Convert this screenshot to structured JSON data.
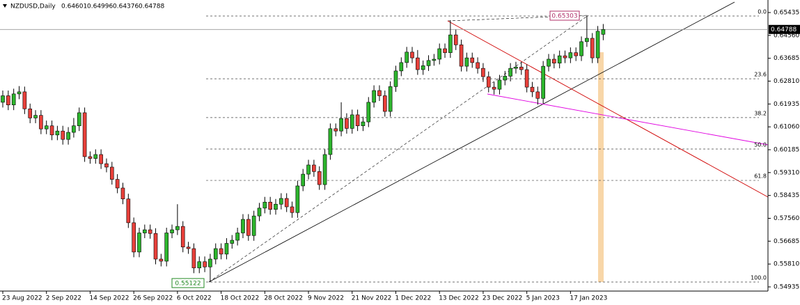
{
  "chart_data": {
    "type": "candlestick",
    "symbol": "NZDUSD,Daily",
    "quote": [
      "0.64601",
      "0.64996",
      "0.64376",
      "0.64788"
    ],
    "categories": [
      "23 Aug 2022",
      null,
      null,
      null,
      null,
      null,
      null,
      null,
      "2 Sep 2022",
      null,
      null,
      null,
      null,
      null,
      null,
      null,
      "14 Sep 2022",
      null,
      null,
      null,
      null,
      null,
      null,
      null,
      "26 Sep 2022",
      null,
      null,
      null,
      null,
      null,
      null,
      null,
      "6 Oct 2022",
      null,
      null,
      null,
      null,
      null,
      null,
      null,
      "18 Oct 2022",
      null,
      null,
      null,
      null,
      null,
      null,
      null,
      "28 Oct 2022",
      null,
      null,
      null,
      null,
      null,
      null,
      null,
      "9 Nov 2022",
      null,
      null,
      null,
      null,
      null,
      null,
      null,
      "21 Nov 2022",
      null,
      null,
      null,
      null,
      null,
      null,
      null,
      "1 Dec 2022",
      null,
      null,
      null,
      null,
      null,
      null,
      null,
      "13 Dec 2022",
      null,
      null,
      null,
      null,
      null,
      null,
      null,
      "23 Dec 2022",
      null,
      null,
      null,
      null,
      null,
      null,
      null,
      "5 Jan 2023",
      null,
      null,
      null,
      null,
      null,
      null,
      null,
      "17 Jan 2023",
      null,
      null,
      null,
      null,
      null,
      null
    ],
    "open": [
      0.62,
      0.6225,
      0.619,
      0.6232,
      0.624,
      0.6175,
      0.614,
      0.615,
      0.6098,
      0.611,
      0.6075,
      0.609,
      0.6058,
      0.6085,
      0.611,
      0.616,
      0.5992,
      0.5985,
      0.6,
      0.5965,
      0.5952,
      0.5905,
      0.5872,
      0.583,
      0.5739,
      0.5627,
      0.57,
      0.5712,
      0.5698,
      0.56,
      0.5592,
      0.57,
      0.5712,
      0.5725,
      0.5646,
      0.564,
      0.5566,
      0.559,
      0.557,
      0.56,
      0.564,
      0.5619,
      0.566,
      0.5672,
      0.57,
      0.5752,
      0.569,
      0.5765,
      0.5795,
      0.5818,
      0.579,
      0.581,
      0.5832,
      0.58,
      0.5778,
      0.588,
      0.5925,
      0.596,
      0.5935,
      0.5885,
      0.6,
      0.6099,
      0.609,
      0.6138,
      0.61,
      0.6152,
      0.611,
      0.6125,
      0.62,
      0.6245,
      0.6225,
      0.6165,
      0.626,
      0.632,
      0.6352,
      0.6392,
      0.637,
      0.6325,
      0.634,
      0.636,
      0.6365,
      0.6405,
      0.639,
      0.6458,
      0.642,
      0.6338,
      0.637,
      0.6352,
      0.633,
      0.6298,
      0.6258,
      0.625,
      0.6285,
      0.63,
      0.633,
      0.6335,
      0.6325,
      0.6258,
      0.624,
      0.6215,
      0.6338,
      0.6365,
      0.635,
      0.6378,
      0.637,
      0.639,
      0.6378,
      0.6432,
      0.6445,
      0.637,
      0.64601
    ],
    "high": [
      0.6245,
      0.6245,
      0.6252,
      0.6262,
      0.626,
      0.6195,
      0.617,
      0.617,
      0.613,
      0.613,
      0.611,
      0.611,
      0.6105,
      0.614,
      0.618,
      0.618,
      0.6012,
      0.602,
      0.602,
      0.5985,
      0.5972,
      0.5925,
      0.5892,
      0.585,
      0.5759,
      0.572,
      0.5732,
      0.5732,
      0.5718,
      0.562,
      0.572,
      0.5732,
      0.581,
      0.5745,
      0.5666,
      0.566,
      0.561,
      0.561,
      0.562,
      0.566,
      0.566,
      0.568,
      0.5692,
      0.572,
      0.5772,
      0.5772,
      0.5785,
      0.5815,
      0.5838,
      0.5838,
      0.583,
      0.5852,
      0.5852,
      0.582,
      0.59,
      0.5945,
      0.598,
      0.598,
      0.5955,
      0.602,
      0.6119,
      0.6119,
      0.62,
      0.6158,
      0.6172,
      0.6172,
      0.6145,
      0.622,
      0.6265,
      0.6265,
      0.6245,
      0.628,
      0.634,
      0.6372,
      0.6412,
      0.6412,
      0.64,
      0.636,
      0.638,
      0.6385,
      0.6425,
      0.6425,
      0.6514,
      0.6478,
      0.644,
      0.639,
      0.639,
      0.6372,
      0.635,
      0.6318,
      0.6278,
      0.6305,
      0.632,
      0.635,
      0.6355,
      0.6355,
      0.6345,
      0.6278,
      0.626,
      0.6358,
      0.6385,
      0.6385,
      0.6398,
      0.6398,
      0.641,
      0.641,
      0.6452,
      0.65303,
      0.6465,
      0.6492,
      0.64996
    ],
    "low": [
      0.618,
      0.617,
      0.617,
      0.6212,
      0.6155,
      0.612,
      0.612,
      0.6078,
      0.6078,
      0.6055,
      0.6055,
      0.6038,
      0.6038,
      0.6065,
      0.609,
      0.5972,
      0.5965,
      0.5965,
      0.5945,
      0.5932,
      0.5885,
      0.5852,
      0.581,
      0.5719,
      0.5607,
      0.5607,
      0.568,
      0.5678,
      0.558,
      0.5572,
      0.5572,
      0.568,
      0.5692,
      0.5626,
      0.562,
      0.5546,
      0.5546,
      0.555,
      0.55122,
      0.558,
      0.5599,
      0.5599,
      0.564,
      0.5652,
      0.568,
      0.567,
      0.567,
      0.5745,
      0.5775,
      0.577,
      0.577,
      0.579,
      0.578,
      0.5758,
      0.5758,
      0.586,
      0.5905,
      0.5915,
      0.5865,
      0.5865,
      0.598,
      0.607,
      0.607,
      0.608,
      0.608,
      0.609,
      0.609,
      0.6105,
      0.618,
      0.6205,
      0.6145,
      0.6145,
      0.624,
      0.63,
      0.6332,
      0.635,
      0.6305,
      0.6305,
      0.632,
      0.634,
      0.6345,
      0.637,
      0.637,
      0.64,
      0.6318,
      0.6318,
      0.6332,
      0.631,
      0.6278,
      0.6238,
      0.623,
      0.623,
      0.6265,
      0.628,
      0.631,
      0.6305,
      0.6238,
      0.622,
      0.6191,
      0.6195,
      0.6318,
      0.633,
      0.633,
      0.635,
      0.635,
      0.6358,
      0.6358,
      0.6412,
      0.635,
      0.635,
      0.64376
    ],
    "close": [
      0.6225,
      0.619,
      0.6232,
      0.624,
      0.6175,
      0.614,
      0.615,
      0.6098,
      0.611,
      0.6075,
      0.609,
      0.6058,
      0.6085,
      0.611,
      0.616,
      0.5992,
      0.5985,
      0.6,
      0.5965,
      0.5952,
      0.5905,
      0.5872,
      0.583,
      0.5739,
      0.5627,
      0.57,
      0.5712,
      0.5698,
      0.56,
      0.5592,
      0.57,
      0.5712,
      0.5725,
      0.5646,
      0.564,
      0.5566,
      0.559,
      0.557,
      0.56,
      0.564,
      0.5619,
      0.566,
      0.5672,
      0.57,
      0.5752,
      0.569,
      0.5765,
      0.5795,
      0.5818,
      0.579,
      0.581,
      0.5832,
      0.58,
      0.5778,
      0.588,
      0.5925,
      0.596,
      0.5935,
      0.5885,
      0.6,
      0.6099,
      0.609,
      0.6138,
      0.61,
      0.6152,
      0.611,
      0.6125,
      0.62,
      0.6245,
      0.6225,
      0.6165,
      0.626,
      0.632,
      0.6352,
      0.6392,
      0.637,
      0.6325,
      0.634,
      0.636,
      0.6365,
      0.6405,
      0.639,
      0.6458,
      0.642,
      0.6338,
      0.637,
      0.6352,
      0.633,
      0.6298,
      0.6258,
      0.625,
      0.6285,
      0.63,
      0.633,
      0.6335,
      0.6325,
      0.6258,
      0.624,
      0.6215,
      0.6338,
      0.6365,
      0.635,
      0.6378,
      0.637,
      0.639,
      0.6378,
      0.6432,
      0.6445,
      0.637,
      0.6472,
      0.64788
    ],
    "colors": {
      "up": "#2db52d",
      "down": "#e8403a"
    },
    "ylim": [
      0.54775,
      0.65915
    ],
    "yticks": [
      0.65435,
      {
        "value": 0.6456,
        "label": "0.64560"
      },
      0.63685,
      {
        "value": 0.6281,
        "label": "0.62810"
      },
      0.61935,
      {
        "value": 0.6106,
        "label": "0.61060"
      },
      0.60185,
      {
        "value": 0.5931,
        "label": "0.59310"
      },
      0.58435,
      {
        "value": 0.5756,
        "label": "0.57560"
      },
      0.56685,
      {
        "value": 0.5581,
        "label": "0.55810"
      },
      0.54935
    ],
    "fibonacci": {
      "high": 0.65303,
      "low": 0.55122,
      "levels": [
        {
          "value": 0,
          "label": "0.0"
        },
        23.6,
        38.2,
        {
          "value": 50,
          "label": "50.0"
        },
        61.8,
        {
          "value": 100,
          "label": "100.0"
        }
      ]
    }
  }
}
